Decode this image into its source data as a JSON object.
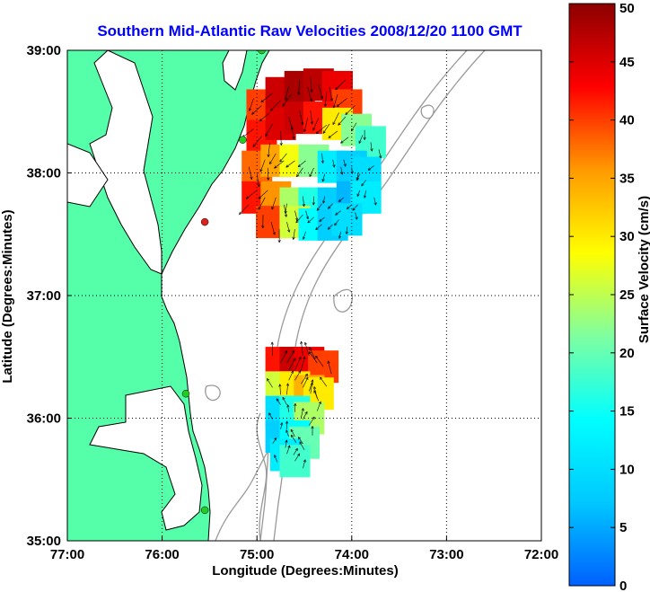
{
  "chart_data": {
    "type": "heatmap",
    "title": "Southern Mid-Atlantic Raw Velocities 2008/12/20 1100 GMT",
    "xlabel": "Longitude (Degrees:Minutes)",
    "ylabel": "Latitude (Degrees:Minutes)",
    "colorbar_label": "Surface Velocity (cm/s)",
    "xlim": [
      -77,
      -72
    ],
    "ylim": [
      35,
      39
    ],
    "clim": [
      0,
      50
    ],
    "grid": true,
    "x_ticks": [
      {
        "value": -77,
        "label": "77:00"
      },
      {
        "value": -76,
        "label": "76:00"
      },
      {
        "value": -75,
        "label": "75:00"
      },
      {
        "value": -74,
        "label": "74:00"
      },
      {
        "value": -73,
        "label": "73:00"
      },
      {
        "value": -72,
        "label": "72:00"
      }
    ],
    "y_ticks": [
      {
        "value": 35,
        "label": "35:00"
      },
      {
        "value": 36,
        "label": "36:00"
      },
      {
        "value": 37,
        "label": "37:00"
      },
      {
        "value": 38,
        "label": "38:00"
      },
      {
        "value": 39,
        "label": "39:00"
      }
    ],
    "colorbar_ticks": [
      {
        "value": 0,
        "label": "0"
      },
      {
        "value": 5,
        "label": "5"
      },
      {
        "value": 10,
        "label": "10"
      },
      {
        "value": 15,
        "label": "15"
      },
      {
        "value": 20,
        "label": "20"
      },
      {
        "value": 25,
        "label": "25"
      },
      {
        "value": 30,
        "label": "30"
      },
      {
        "value": 35,
        "label": "35"
      },
      {
        "value": 40,
        "label": "40"
      },
      {
        "value": 45,
        "label": "45"
      },
      {
        "value": 50,
        "label": "50"
      }
    ],
    "colormap": [
      "#0060ff",
      "#00c8ff",
      "#00ffff",
      "#7fffa0",
      "#ffff00",
      "#ff9a00",
      "#ff0000",
      "#8b0000"
    ],
    "regions": [
      {
        "id": "north",
        "points": [
          {
            "lon": -74.95,
            "lat": 38.55,
            "v": 40
          },
          {
            "lon": -74.75,
            "lat": 38.65,
            "v": 46
          },
          {
            "lon": -74.55,
            "lat": 38.7,
            "v": 48
          },
          {
            "lon": -74.35,
            "lat": 38.72,
            "v": 47
          },
          {
            "lon": -74.15,
            "lat": 38.7,
            "v": 44
          },
          {
            "lon": -74.05,
            "lat": 38.55,
            "v": 40
          },
          {
            "lon": -74.95,
            "lat": 38.3,
            "v": 42
          },
          {
            "lon": -74.75,
            "lat": 38.4,
            "v": 45
          },
          {
            "lon": -74.55,
            "lat": 38.45,
            "v": 46
          },
          {
            "lon": -74.35,
            "lat": 38.45,
            "v": 42
          },
          {
            "lon": -74.15,
            "lat": 38.4,
            "v": 30
          },
          {
            "lon": -73.95,
            "lat": 38.35,
            "v": 22
          },
          {
            "lon": -73.8,
            "lat": 38.25,
            "v": 18
          },
          {
            "lon": -75.0,
            "lat": 38.05,
            "v": 38
          },
          {
            "lon": -74.8,
            "lat": 38.1,
            "v": 35
          },
          {
            "lon": -74.6,
            "lat": 38.1,
            "v": 28
          },
          {
            "lon": -74.4,
            "lat": 38.1,
            "v": 22
          },
          {
            "lon": -74.2,
            "lat": 38.05,
            "v": 12
          },
          {
            "lon": -74.0,
            "lat": 38.05,
            "v": 8
          },
          {
            "lon": -73.85,
            "lat": 38.0,
            "v": 10
          },
          {
            "lon": -75.0,
            "lat": 37.8,
            "v": 42
          },
          {
            "lon": -74.8,
            "lat": 37.8,
            "v": 36
          },
          {
            "lon": -74.6,
            "lat": 37.75,
            "v": 24
          },
          {
            "lon": -74.4,
            "lat": 37.75,
            "v": 16
          },
          {
            "lon": -74.2,
            "lat": 37.75,
            "v": 8
          },
          {
            "lon": -74.0,
            "lat": 37.8,
            "v": 6
          },
          {
            "lon": -73.85,
            "lat": 37.8,
            "v": 12
          },
          {
            "lon": -74.85,
            "lat": 37.6,
            "v": 40
          },
          {
            "lon": -74.6,
            "lat": 37.6,
            "v": 26
          },
          {
            "lon": -74.4,
            "lat": 37.58,
            "v": 14
          },
          {
            "lon": -74.2,
            "lat": 37.58,
            "v": 8
          },
          {
            "lon": -74.05,
            "lat": 37.62,
            "v": 10
          }
        ]
      },
      {
        "id": "south",
        "points": [
          {
            "lon": -74.75,
            "lat": 36.45,
            "v": 42
          },
          {
            "lon": -74.6,
            "lat": 36.45,
            "v": 46
          },
          {
            "lon": -74.45,
            "lat": 36.45,
            "v": 44
          },
          {
            "lon": -74.3,
            "lat": 36.42,
            "v": 40
          },
          {
            "lon": -74.75,
            "lat": 36.25,
            "v": 26
          },
          {
            "lon": -74.6,
            "lat": 36.25,
            "v": 30
          },
          {
            "lon": -74.45,
            "lat": 36.22,
            "v": 34
          },
          {
            "lon": -74.35,
            "lat": 36.2,
            "v": 30
          },
          {
            "lon": -74.75,
            "lat": 36.05,
            "v": 10
          },
          {
            "lon": -74.6,
            "lat": 36.05,
            "v": 16
          },
          {
            "lon": -74.45,
            "lat": 36.0,
            "v": 24
          },
          {
            "lon": -74.75,
            "lat": 35.85,
            "v": 8
          },
          {
            "lon": -74.6,
            "lat": 35.85,
            "v": 14
          },
          {
            "lon": -74.5,
            "lat": 35.8,
            "v": 20
          },
          {
            "lon": -74.7,
            "lat": 35.7,
            "v": 12
          },
          {
            "lon": -74.6,
            "lat": 35.65,
            "v": 18
          }
        ]
      }
    ],
    "coastline_features": "land mass (green) with Chesapeake and Delaware bays; gray bathymetry contours offshore",
    "station_markers": [
      {
        "lon": -74.95,
        "lat": 39.0,
        "color": "#22cc22"
      },
      {
        "lon": -75.15,
        "lat": 38.27,
        "color": "#22cc22"
      },
      {
        "lon": -75.55,
        "lat": 37.6,
        "color": "#dd2222"
      },
      {
        "lon": -75.75,
        "lat": 36.2,
        "color": "#22cc22"
      },
      {
        "lon": -75.55,
        "lat": 35.25,
        "color": "#22cc22"
      }
    ],
    "colors": {
      "land": "#55ffaa",
      "land_edge": "#000000",
      "water": "#ffffff",
      "bathymetry": "#999999",
      "title": "#0000ff",
      "grid": "#000000"
    }
  }
}
